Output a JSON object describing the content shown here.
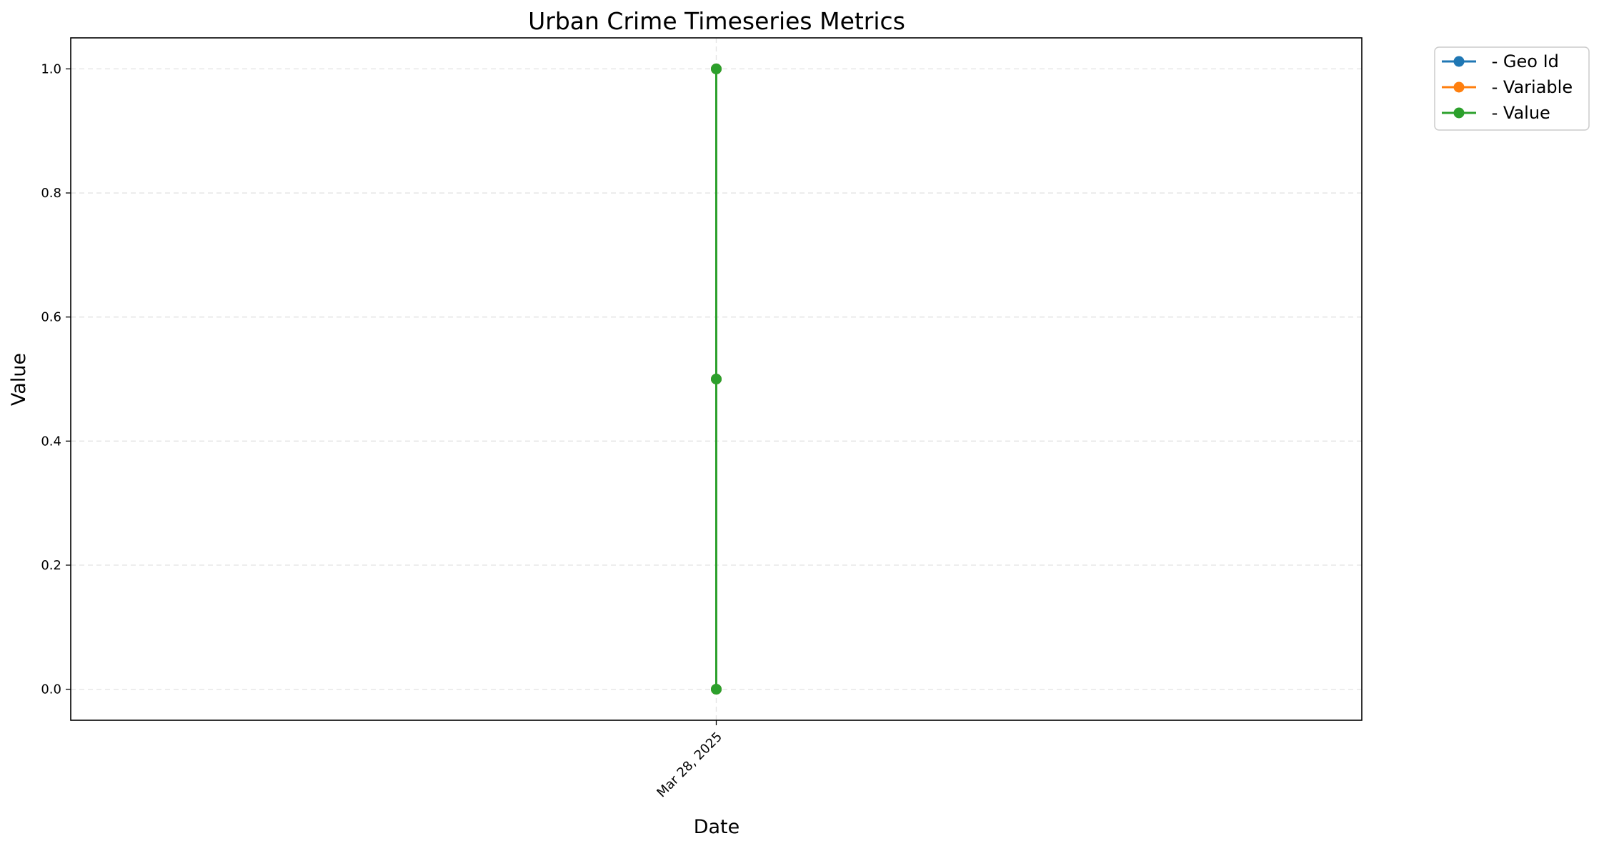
{
  "chart_data": {
    "type": "line",
    "title": "Urban Crime Timeseries Metrics",
    "xlabel": "Date",
    "ylabel": "Value",
    "x_ticks": [
      "Mar 28, 2025"
    ],
    "y_ticks": [
      "0.0",
      "0.2",
      "0.4",
      "0.6",
      "0.8",
      "1.0"
    ],
    "y_tick_values": [
      0.0,
      0.2,
      0.4,
      0.6,
      0.8,
      1.0
    ],
    "ylim": [
      -0.05,
      1.05
    ],
    "grid": true,
    "legend_position": "outside-top-right",
    "series": [
      {
        "name": " - Geo Id",
        "color": "#1f77b4",
        "x": [
          "Mar 28, 2025",
          "Mar 28, 2025",
          "Mar 28, 2025"
        ],
        "y": [
          0.0,
          0.5,
          1.0
        ]
      },
      {
        "name": " - Variable",
        "color": "#ff7f0e",
        "x": [
          "Mar 28, 2025",
          "Mar 28, 2025",
          "Mar 28, 2025"
        ],
        "y": [
          0.0,
          0.5,
          1.0
        ]
      },
      {
        "name": " - Value",
        "color": "#2ca02c",
        "x": [
          "Mar 28, 2025",
          "Mar 28, 2025",
          "Mar 28, 2025"
        ],
        "y": [
          0.0,
          0.5,
          1.0
        ]
      }
    ]
  }
}
